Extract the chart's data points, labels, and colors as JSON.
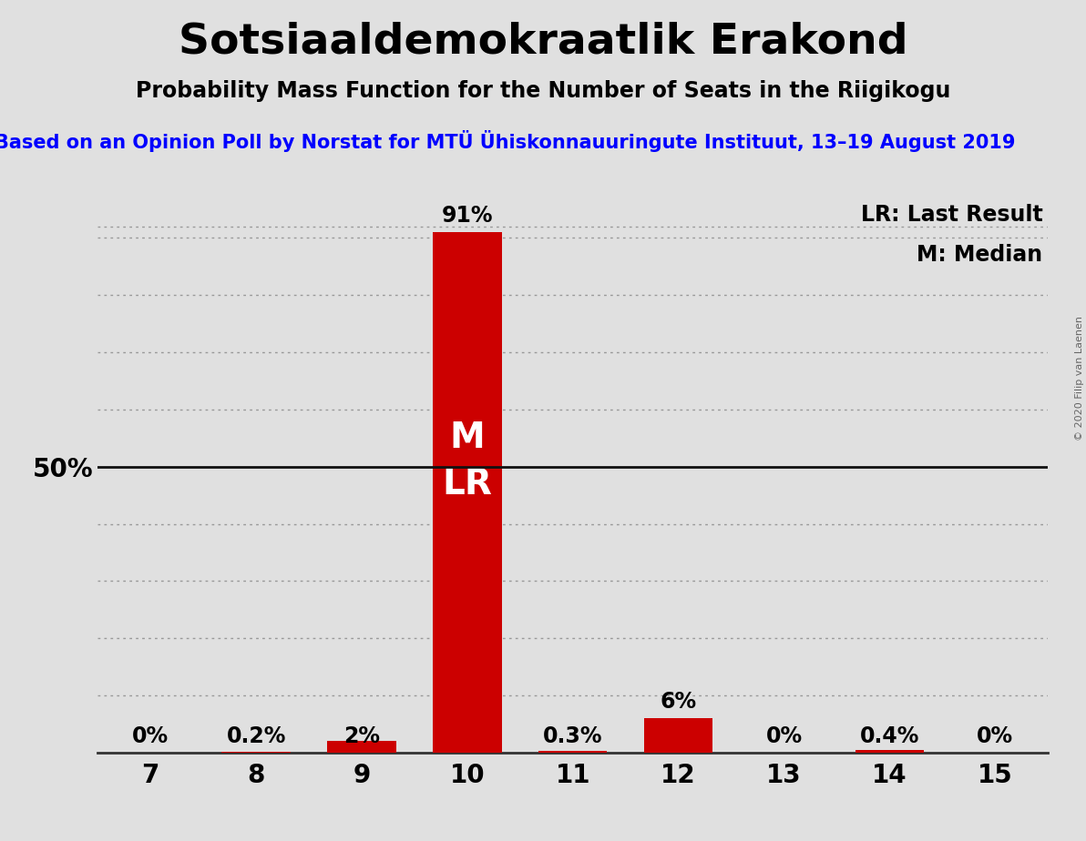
{
  "title": "Sotsiaaldemokraatlik Erakond",
  "subtitle": "Probability Mass Function for the Number of Seats in the Riigikogu",
  "source_line": "Based on an Opinion Poll by Norstat for MTÜ Ühiskonnauuringute Instituut, 13–19 August 2019",
  "copyright": "© 2020 Filip van Laenen",
  "categories": [
    7,
    8,
    9,
    10,
    11,
    12,
    13,
    14,
    15
  ],
  "values": [
    0.0,
    0.2,
    2.0,
    91.0,
    0.3,
    6.0,
    0.0,
    0.4,
    0.0
  ],
  "labels": [
    "0%",
    "0.2%",
    "2%",
    "91%",
    "0.3%",
    "6%",
    "0%",
    "0.4%",
    "0%"
  ],
  "bar_color": "#cc0000",
  "background_color": "#e0e0e0",
  "legend_lr": "LR: Last Result",
  "legend_m": "M: Median",
  "ylabel_50": "50%",
  "grid_color": "#999999",
  "ylim": [
    0,
    100
  ],
  "title_fontsize": 34,
  "subtitle_fontsize": 17,
  "source_fontsize": 15,
  "bar_label_fontsize": 17,
  "axis_tick_fontsize": 20,
  "ylabel_fontsize": 20,
  "legend_fontsize": 17,
  "ml_fontsize": 28
}
